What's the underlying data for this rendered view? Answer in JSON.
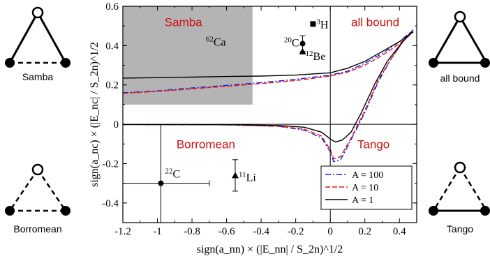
{
  "chart_data": {
    "type": "line",
    "xlabel": "sign(a_nn) × (|E_nn| / S_2n)^1/2",
    "ylabel": "sign(a_nc) × (|E_nc| / S_2n)^1/2",
    "xlim": [
      -1.2,
      0.5
    ],
    "ylim": [
      -0.5,
      0.6
    ],
    "x_ticks": [
      "-1.2",
      "-1",
      "-0.8",
      "-0.6",
      "-0.4",
      "-0.2",
      "0",
      "0.2",
      "0.4"
    ],
    "y_ticks": [
      "-0.4",
      "-0.2",
      "0",
      "0.2",
      "0.4",
      "0.6"
    ],
    "region_labels": [
      {
        "text": "Samba",
        "x": -0.85,
        "y": 0.52,
        "color": "#cc1111"
      },
      {
        "text": "all bound",
        "x": 0.26,
        "y": 0.52,
        "color": "#cc1111"
      },
      {
        "text": "Borromean",
        "x": -0.72,
        "y": -0.1,
        "color": "#cc1111"
      },
      {
        "text": "Tango",
        "x": 0.25,
        "y": -0.1,
        "color": "#cc1111"
      }
    ],
    "shaded_region": {
      "x": [
        -1.2,
        -0.45
      ],
      "y": [
        0.1,
        0.6
      ],
      "color": "#b4b4b4"
    },
    "series": [
      {
        "name": "A = 100",
        "color": "#1a1ae6",
        "dash": "dashdot",
        "upper": [
          [
            -1.2,
            0.16
          ],
          [
            -1.0,
            0.17
          ],
          [
            -0.8,
            0.185
          ],
          [
            -0.6,
            0.198
          ],
          [
            -0.4,
            0.212
          ],
          [
            -0.2,
            0.228
          ],
          [
            0.0,
            0.25
          ],
          [
            0.1,
            0.27
          ],
          [
            0.2,
            0.31
          ],
          [
            0.3,
            0.36
          ],
          [
            0.4,
            0.42
          ],
          [
            0.48,
            0.48
          ]
        ],
        "lower": [
          [
            -1.2,
            -0.001
          ],
          [
            -0.6,
            -0.003
          ],
          [
            -0.3,
            -0.01
          ],
          [
            -0.15,
            -0.03
          ],
          [
            -0.05,
            -0.07
          ],
          [
            0.0,
            -0.14
          ],
          [
            0.02,
            -0.19
          ],
          [
            0.06,
            -0.18
          ],
          [
            0.12,
            -0.08
          ],
          [
            0.2,
            0.06
          ],
          [
            0.28,
            0.22
          ],
          [
            0.35,
            0.33
          ],
          [
            0.42,
            0.42
          ],
          [
            0.48,
            0.48
          ]
        ]
      },
      {
        "name": "A = 10",
        "color": "#e61a1a",
        "dash": "dashed",
        "upper": [
          [
            -1.2,
            0.157
          ],
          [
            -1.0,
            0.167
          ],
          [
            -0.8,
            0.18
          ],
          [
            -0.6,
            0.193
          ],
          [
            -0.4,
            0.207
          ],
          [
            -0.2,
            0.222
          ],
          [
            0.0,
            0.245
          ],
          [
            0.1,
            0.265
          ],
          [
            0.2,
            0.3
          ],
          [
            0.3,
            0.35
          ],
          [
            0.4,
            0.41
          ],
          [
            0.48,
            0.47
          ]
        ],
        "lower": [
          [
            -1.2,
            -0.001
          ],
          [
            -0.6,
            -0.003
          ],
          [
            -0.3,
            -0.01
          ],
          [
            -0.15,
            -0.025
          ],
          [
            -0.05,
            -0.06
          ],
          [
            0.0,
            -0.13
          ],
          [
            0.02,
            -0.175
          ],
          [
            0.06,
            -0.165
          ],
          [
            0.12,
            -0.07
          ],
          [
            0.2,
            0.07
          ],
          [
            0.28,
            0.23
          ],
          [
            0.35,
            0.33
          ],
          [
            0.42,
            0.42
          ],
          [
            0.48,
            0.47
          ]
        ]
      },
      {
        "name": "A = 1",
        "color": "#000000",
        "dash": "solid",
        "upper": [
          [
            -1.2,
            0.235
          ],
          [
            -1.0,
            0.237
          ],
          [
            -0.8,
            0.24
          ],
          [
            -0.6,
            0.243
          ],
          [
            -0.4,
            0.245
          ],
          [
            -0.2,
            0.25
          ],
          [
            0.0,
            0.262
          ],
          [
            0.1,
            0.285
          ],
          [
            0.2,
            0.32
          ],
          [
            0.3,
            0.37
          ],
          [
            0.4,
            0.42
          ],
          [
            0.48,
            0.47
          ]
        ],
        "lower": [
          [
            -1.2,
            -0.001
          ],
          [
            -0.6,
            -0.002
          ],
          [
            -0.3,
            -0.006
          ],
          [
            -0.15,
            -0.015
          ],
          [
            -0.05,
            -0.04
          ],
          [
            0.0,
            -0.075
          ],
          [
            0.03,
            -0.09
          ],
          [
            0.07,
            -0.08
          ],
          [
            0.12,
            -0.04
          ],
          [
            0.18,
            0.06
          ],
          [
            0.26,
            0.21
          ],
          [
            0.33,
            0.32
          ],
          [
            0.41,
            0.41
          ],
          [
            0.47,
            0.47
          ]
        ]
      }
    ],
    "points": [
      {
        "label": "3H",
        "mass": "3",
        "sym": "H",
        "x": -0.1,
        "y": 0.51,
        "marker": "square",
        "xerr": 0,
        "yerr": [
          0,
          0
        ]
      },
      {
        "label": "20C",
        "mass": "20",
        "sym": "C",
        "x": -0.16,
        "y": 0.41,
        "marker": "circle",
        "xerr": 0,
        "yerr": [
          0.04,
          0.04
        ]
      },
      {
        "label": "12Be",
        "mass": "12",
        "sym": "Be",
        "x": -0.16,
        "y": 0.37,
        "marker": "triangle",
        "xerr": 0,
        "yerr": [
          0,
          0
        ]
      },
      {
        "label": "22C",
        "mass": "22",
        "sym": "C",
        "x": -0.98,
        "y": -0.3,
        "marker": "circle",
        "xerr": [
          0.0,
          0.28
        ],
        "xerr_left_to_axis": true,
        "yerr": [
          0,
          0
        ]
      },
      {
        "label": "11Li",
        "mass": "11",
        "sym": "Li",
        "x": -0.55,
        "y": -0.26,
        "marker": "triangle",
        "xerr": 0,
        "yerr": [
          0.08,
          0.08
        ]
      }
    ],
    "labels_62Ca": {
      "mass": "62",
      "sym": "Ca",
      "x": -0.72,
      "y": 0.42
    },
    "legend": {
      "placement": "bottom-right",
      "entries": [
        "A = 100",
        "A = 10",
        "A = 1"
      ]
    }
  },
  "diagrams": {
    "samba": "Samba",
    "all_bound": "all bound",
    "borromean": "Borromean",
    "tango": "Tango"
  }
}
